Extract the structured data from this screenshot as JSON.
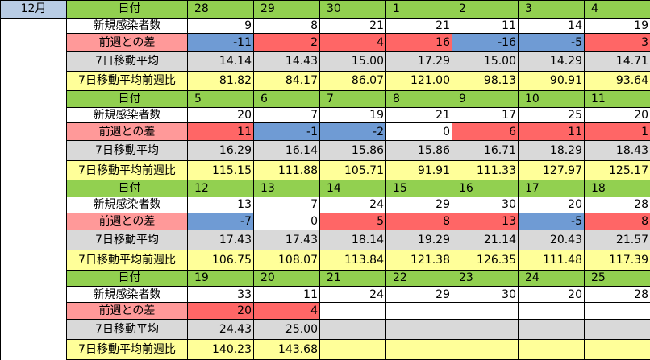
{
  "month_label": "12月",
  "row_labels": {
    "date": "日付",
    "new_cases": "新規感染者数",
    "diff": "前週との差",
    "avg7": "7日移動平均",
    "ratio": "7日移動平均前週比"
  },
  "blocks": [
    {
      "dates": [
        "28",
        "29",
        "30",
        "1",
        "2",
        "3",
        "4"
      ],
      "new_cases": [
        "9",
        "8",
        "21",
        "21",
        "11",
        "14",
        "19"
      ],
      "diff": [
        "-11",
        "2",
        "4",
        "16",
        "-16",
        "-5",
        "3"
      ],
      "diff_colors": [
        "b",
        "r",
        "r",
        "r",
        "b",
        "b",
        "r"
      ],
      "avg7": [
        "14.14",
        "14.43",
        "15.00",
        "17.29",
        "15.00",
        "14.29",
        "14.71"
      ],
      "ratio": [
        "81.82",
        "84.17",
        "86.07",
        "121.00",
        "98.13",
        "90.91",
        "93.64"
      ]
    },
    {
      "dates": [
        "5",
        "6",
        "7",
        "8",
        "9",
        "10",
        "11"
      ],
      "new_cases": [
        "20",
        "7",
        "19",
        "21",
        "17",
        "25",
        "20"
      ],
      "diff": [
        "11",
        "-1",
        "-2",
        "0",
        "6",
        "11",
        "1"
      ],
      "diff_colors": [
        "r",
        "b",
        "b",
        "w",
        "r",
        "r",
        "r"
      ],
      "avg7": [
        "16.29",
        "16.14",
        "15.86",
        "15.86",
        "16.71",
        "18.29",
        "18.43"
      ],
      "ratio": [
        "115.15",
        "111.88",
        "105.71",
        "91.91",
        "111.33",
        "127.97",
        "125.17"
      ]
    },
    {
      "dates": [
        "12",
        "13",
        "14",
        "15",
        "16",
        "17",
        "18"
      ],
      "new_cases": [
        "13",
        "7",
        "24",
        "29",
        "30",
        "20",
        "28"
      ],
      "diff": [
        "-7",
        "0",
        "5",
        "8",
        "13",
        "-5",
        "8"
      ],
      "diff_colors": [
        "b",
        "w",
        "r",
        "r",
        "r",
        "b",
        "r"
      ],
      "avg7": [
        "17.43",
        "17.43",
        "18.14",
        "19.29",
        "21.14",
        "20.43",
        "21.57"
      ],
      "ratio": [
        "106.75",
        "108.07",
        "113.84",
        "121.38",
        "126.35",
        "111.48",
        "117.39"
      ]
    },
    {
      "dates": [
        "19",
        "20",
        "21",
        "22",
        "23",
        "24",
        "25"
      ],
      "new_cases": [
        "33",
        "11",
        "24",
        "29",
        "30",
        "20",
        "28"
      ],
      "diff": [
        "20",
        "4",
        "",
        "",
        "",
        "",
        ""
      ],
      "diff_colors": [
        "r",
        "r",
        "w",
        "w",
        "w",
        "w",
        "w"
      ],
      "avg7": [
        "24.43",
        "25.00",
        "",
        "",
        "",
        "",
        ""
      ],
      "ratio": [
        "140.23",
        "143.68",
        "",
        "",
        "",
        "",
        ""
      ]
    }
  ],
  "colors": {
    "date_row": "#92d050",
    "avg_row": "#d9d9d9",
    "ratio_row": "#ffff99",
    "diff_label": "#ff9999",
    "increase": "#ff6666",
    "decrease": "#6f9bd4",
    "month_cell": "#b8cce4"
  }
}
